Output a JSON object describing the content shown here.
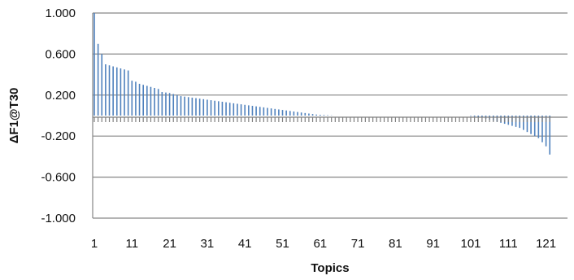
{
  "chart_data": {
    "type": "bar",
    "xlabel": "Topics",
    "ylabel": "ΔF1@T30",
    "ylim": [
      -1.0,
      1.0
    ],
    "yticks": [
      1.0,
      0.6,
      0.2,
      -0.2,
      -0.6,
      -1.0
    ],
    "ytick_labels": [
      "1.000",
      "0.600",
      "0.200",
      "-0.200",
      "-0.600",
      "-1.000"
    ],
    "xticks": [
      1,
      11,
      21,
      31,
      41,
      51,
      61,
      71,
      81,
      91,
      101,
      111,
      121
    ],
    "xtick_labels": [
      "1",
      "11",
      "21",
      "31",
      "41",
      "51",
      "61",
      "71",
      "81",
      "91",
      "101",
      "111",
      "121"
    ],
    "grid": true,
    "bar_color": "#4f81bd",
    "series": [
      {
        "x": [
          1,
          2,
          3,
          4,
          5,
          6,
          7,
          8,
          9,
          10,
          11,
          12,
          13,
          14,
          15,
          16,
          17,
          18,
          19,
          20,
          21,
          22,
          23,
          24,
          25,
          26,
          27,
          28,
          29,
          30,
          31,
          32,
          33,
          34,
          35,
          36,
          37,
          38,
          39,
          40,
          41,
          42,
          43,
          44,
          45,
          46,
          47,
          48,
          49,
          50,
          51,
          52,
          53,
          54,
          55,
          56,
          57,
          58,
          59,
          60,
          61,
          62,
          63,
          64,
          65,
          66,
          67,
          68,
          69,
          70,
          71,
          72,
          73,
          74,
          75,
          76,
          77,
          78,
          79,
          80,
          81,
          82,
          83,
          84,
          85,
          86,
          87,
          88,
          89,
          90,
          91,
          92,
          93,
          94,
          95,
          96,
          97,
          98,
          99,
          100,
          101,
          102,
          103,
          104,
          105,
          106,
          107,
          108,
          109,
          110,
          111,
          112,
          113,
          114,
          115,
          116,
          117,
          118,
          119,
          120,
          121,
          122
        ],
        "values": [
          1.0,
          0.7,
          0.6,
          0.5,
          0.49,
          0.48,
          0.47,
          0.46,
          0.45,
          0.44,
          0.34,
          0.33,
          0.31,
          0.3,
          0.29,
          0.28,
          0.27,
          0.26,
          0.23,
          0.225,
          0.22,
          0.21,
          0.2,
          0.19,
          0.185,
          0.18,
          0.175,
          0.17,
          0.165,
          0.16,
          0.155,
          0.15,
          0.145,
          0.14,
          0.135,
          0.13,
          0.125,
          0.12,
          0.115,
          0.11,
          0.105,
          0.1,
          0.095,
          0.09,
          0.085,
          0.08,
          0.075,
          0.07,
          0.065,
          0.06,
          0.055,
          0.05,
          0.045,
          0.04,
          0.035,
          0.03,
          0.025,
          0.02,
          0.015,
          0.01,
          0.008,
          0.006,
          0.004,
          0.002,
          0.001,
          0,
          0,
          0,
          0,
          0,
          0,
          0,
          0,
          0,
          0,
          0,
          0,
          0,
          0,
          0,
          0,
          0,
          0,
          0,
          0,
          0,
          0,
          0,
          0,
          0,
          0,
          0,
          0,
          0,
          0,
          0,
          0,
          0,
          0,
          0,
          -0.005,
          -0.01,
          -0.015,
          -0.02,
          -0.03,
          -0.04,
          -0.05,
          -0.06,
          -0.07,
          -0.08,
          -0.09,
          -0.1,
          -0.11,
          -0.12,
          -0.14,
          -0.16,
          -0.18,
          -0.2,
          -0.22,
          -0.26,
          -0.3,
          -0.38
        ]
      }
    ]
  }
}
